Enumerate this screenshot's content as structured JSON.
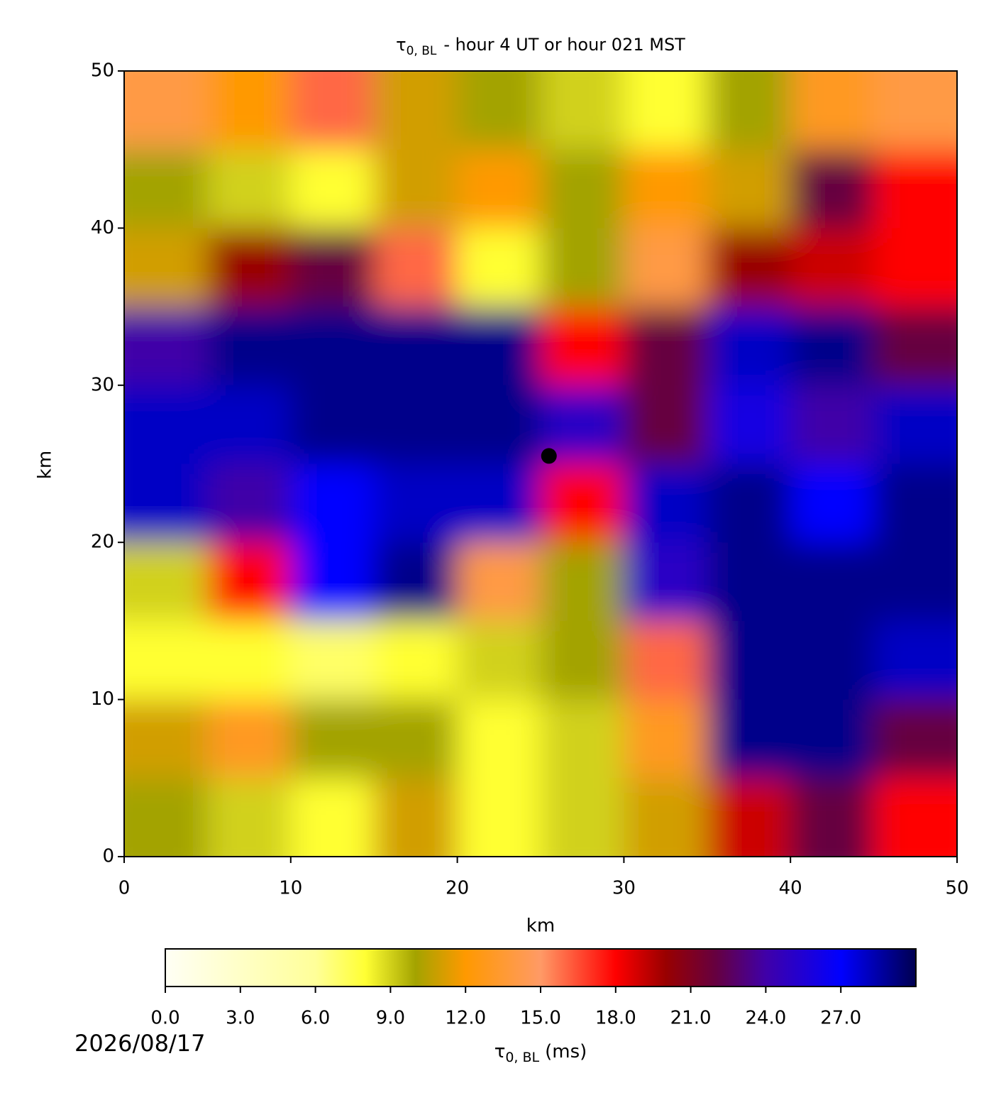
{
  "chart_data": {
    "type": "heatmap",
    "title": {
      "symbol": "τ",
      "subscript": "0, BL",
      "text": "- hour 4 UT or hour 021 MST"
    },
    "x_label": "km",
    "y_label": "km",
    "xlim": [
      0,
      50
    ],
    "ylim": [
      0,
      50
    ],
    "xticks": [
      0,
      10,
      20,
      30,
      40,
      50
    ],
    "yticks": [
      0,
      10,
      20,
      30,
      40,
      50
    ],
    "x": [
      2.5,
      7.5,
      12.5,
      17.5,
      22.5,
      27.5,
      32.5,
      37.5,
      42.5,
      47.5
    ],
    "y": [
      47.5,
      42.5,
      37.5,
      32.5,
      27.5,
      22.5,
      17.5,
      12.5,
      7.5,
      2.5
    ],
    "z": [
      [
        14,
        12,
        16,
        11,
        10,
        9,
        8,
        10,
        13,
        14
      ],
      [
        10,
        9,
        8,
        11,
        12,
        10,
        12,
        11,
        22,
        18
      ],
      [
        11,
        20,
        22,
        16,
        8,
        10,
        14,
        20,
        19,
        18
      ],
      [
        24,
        29,
        29,
        29,
        29,
        18,
        22,
        28,
        29,
        22
      ],
      [
        28,
        28,
        29,
        29,
        29,
        25,
        22,
        26,
        24,
        28
      ],
      [
        28,
        24,
        27,
        28,
        28,
        18,
        28,
        29,
        27,
        29
      ],
      [
        9,
        18,
        27,
        29,
        14,
        10,
        25,
        29,
        29,
        29
      ],
      [
        8,
        8,
        7,
        8,
        9,
        10,
        16,
        29,
        29,
        28
      ],
      [
        11,
        13,
        10,
        10,
        8,
        9,
        13,
        29,
        29,
        22
      ],
      [
        10,
        9,
        8,
        11,
        8,
        9,
        11,
        19,
        22,
        18
      ]
    ],
    "marker": {
      "x": 25.5,
      "y": 25.5,
      "color": "#000000"
    },
    "colormap": [
      {
        "value": 0,
        "color": "#fffff5"
      },
      {
        "value": 6,
        "color": "#ffff99"
      },
      {
        "value": 8,
        "color": "#ffff33"
      },
      {
        "value": 10,
        "color": "#a3a300"
      },
      {
        "value": 12,
        "color": "#ff9900"
      },
      {
        "value": 15,
        "color": "#ff9a66"
      },
      {
        "value": 18,
        "color": "#ff0000"
      },
      {
        "value": 20,
        "color": "#990000"
      },
      {
        "value": 22,
        "color": "#660040"
      },
      {
        "value": 24,
        "color": "#4000a8"
      },
      {
        "value": 27,
        "color": "#0000ff"
      },
      {
        "value": 30,
        "color": "#000050"
      }
    ],
    "colorbar": {
      "lim": [
        0,
        30
      ],
      "ticks": [
        {
          "value": 0,
          "label": "0.0"
        },
        {
          "value": 3,
          "label": "3.0"
        },
        {
          "value": 6,
          "label": "6.0"
        },
        {
          "value": 9,
          "label": "9.0"
        },
        {
          "value": 12,
          "label": "12.0"
        },
        {
          "value": 15,
          "label": "15.0"
        },
        {
          "value": 18,
          "label": "18.0"
        },
        {
          "value": 21,
          "label": "21.0"
        },
        {
          "value": 24,
          "label": "24.0"
        },
        {
          "value": 27,
          "label": "27.0"
        }
      ],
      "label": {
        "symbol": "τ",
        "subscript": "0, BL",
        "text": "(ms)"
      }
    },
    "date": "2026/08/17"
  }
}
